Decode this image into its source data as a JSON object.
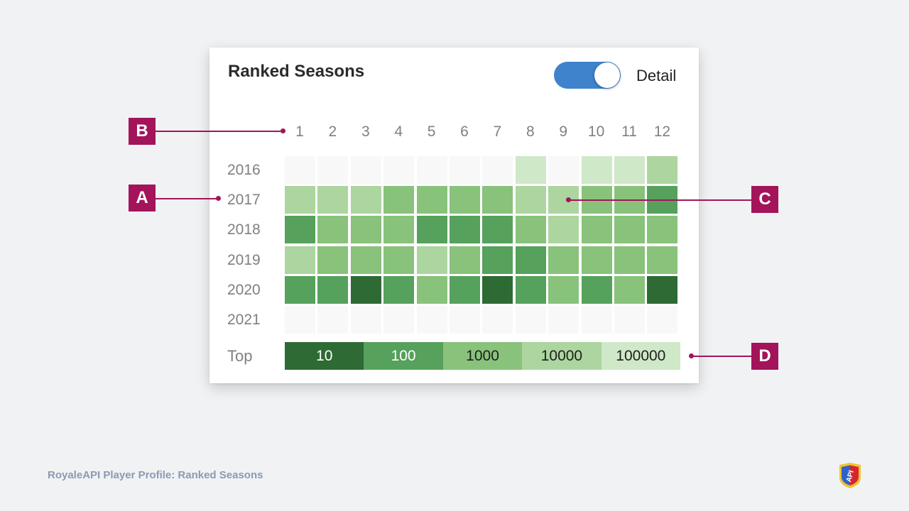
{
  "card": {
    "title": "Ranked Seasons",
    "toggle": {
      "label": "Detail",
      "state": "on"
    }
  },
  "columns": [
    "1",
    "2",
    "3",
    "4",
    "5",
    "6",
    "7",
    "8",
    "9",
    "10",
    "11",
    "12"
  ],
  "years": [
    "2016",
    "2017",
    "2018",
    "2019",
    "2020",
    "2021"
  ],
  "grid": [
    [
      0,
      0,
      0,
      0,
      0,
      0,
      0,
      1,
      0,
      1,
      1,
      2
    ],
    [
      2,
      2,
      2,
      3,
      3,
      3,
      3,
      2,
      2,
      3,
      3,
      4
    ],
    [
      4,
      3,
      3,
      3,
      4,
      4,
      4,
      3,
      2,
      3,
      3,
      3
    ],
    [
      2,
      3,
      3,
      3,
      2,
      3,
      4,
      4,
      3,
      3,
      3,
      3
    ],
    [
      4,
      4,
      5,
      4,
      3,
      4,
      5,
      4,
      3,
      4,
      3,
      5
    ],
    [
      0,
      0,
      0,
      0,
      0,
      0,
      0,
      0,
      0,
      0,
      0,
      0
    ]
  ],
  "colors": {
    "0": "#f8f8f8",
    "1": "#cfe8c8",
    "2": "#acd59f",
    "3": "#88c27b",
    "4": "#56a15c",
    "5": "#2d6a34",
    "accent": "#a3145a",
    "toggle": "#3f83cc"
  },
  "legend": {
    "title": "Top",
    "items": [
      {
        "label": "10",
        "level": 5
      },
      {
        "label": "100",
        "level": 4
      },
      {
        "label": "1000",
        "level": 3
      },
      {
        "label": "10000",
        "level": 2
      },
      {
        "label": "100000",
        "level": 1
      }
    ]
  },
  "callouts": {
    "a": "A",
    "b": "B",
    "c": "C",
    "d": "D"
  },
  "footer": {
    "caption": "RoyaleAPI Player Profile: Ranked Seasons"
  },
  "logo": {
    "text": "API",
    "icon": "royaleapi-shield-logo"
  }
}
